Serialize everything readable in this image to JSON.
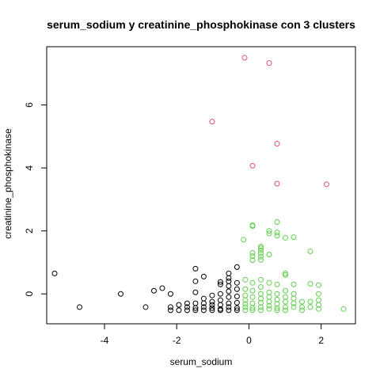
{
  "chart_data": {
    "type": "scatter",
    "title": "serum_sodium  y  creatinine_phosphokinase con  3  clusters",
    "xlabel": "serum_sodium",
    "ylabel": "creatinine_phosphokinase",
    "xlim": [
      -5.6,
      2.95
    ],
    "ylim": [
      -0.95,
      7.85
    ],
    "xticks": [
      -4,
      -2,
      0,
      2
    ],
    "yticks": [
      0,
      2,
      4,
      6
    ],
    "xtick_labels": [
      "-4",
      "-2",
      "0",
      "2"
    ],
    "ytick_labels": [
      "0",
      "2",
      "4",
      "6"
    ],
    "grid": false,
    "legend": "none",
    "series": [
      {
        "color": "#000000",
        "points": [
          [
            -5.38,
            0.65
          ],
          [
            -4.69,
            -0.42
          ],
          [
            -3.55,
            0.0
          ],
          [
            -2.86,
            -0.42
          ],
          [
            -2.63,
            0.1
          ],
          [
            -2.4,
            0.18
          ],
          [
            -2.17,
            0.0
          ],
          [
            -2.17,
            -0.42
          ],
          [
            -2.17,
            -0.52
          ],
          [
            -1.94,
            -0.35
          ],
          [
            -1.94,
            -0.52
          ],
          [
            -1.71,
            -0.3
          ],
          [
            -1.71,
            -0.42
          ],
          [
            -1.71,
            -0.52
          ],
          [
            -1.48,
            -0.3
          ],
          [
            -1.48,
            -0.45
          ],
          [
            -1.48,
            -0.52
          ],
          [
            -1.48,
            0.8
          ],
          [
            -1.48,
            0.4
          ],
          [
            -1.48,
            0.05
          ],
          [
            -1.25,
            0.55
          ],
          [
            -1.25,
            -0.15
          ],
          [
            -1.25,
            -0.3
          ],
          [
            -1.25,
            -0.42
          ],
          [
            -1.25,
            -0.52
          ],
          [
            -1.02,
            -0.05
          ],
          [
            -1.02,
            -0.25
          ],
          [
            -1.02,
            -0.35
          ],
          [
            -1.02,
            -0.45
          ],
          [
            -1.02,
            -0.52
          ],
          [
            -0.79,
            0.38
          ],
          [
            -0.79,
            0.3
          ],
          [
            -0.79,
            0.0
          ],
          [
            -0.79,
            -0.2
          ],
          [
            -0.79,
            -0.35
          ],
          [
            -0.79,
            -0.48
          ],
          [
            -0.79,
            -0.52
          ],
          [
            -0.56,
            0.65
          ],
          [
            -0.56,
            0.5
          ],
          [
            -0.56,
            0.4
          ],
          [
            -0.56,
            0.25
          ],
          [
            -0.56,
            0.08
          ],
          [
            -0.56,
            -0.1
          ],
          [
            -0.56,
            -0.3
          ],
          [
            -0.56,
            -0.42
          ],
          [
            -0.56,
            -0.52
          ],
          [
            -0.33,
            0.85
          ],
          [
            -0.33,
            0.35
          ],
          [
            -0.33,
            0.15
          ],
          [
            -0.33,
            -0.08
          ],
          [
            -0.33,
            -0.28
          ],
          [
            -0.33,
            -0.45
          ],
          [
            -0.33,
            -0.52
          ]
        ]
      },
      {
        "color": "#DF536B",
        "points": [
          [
            -0.12,
            7.5
          ],
          [
            0.56,
            7.33
          ],
          [
            -1.02,
            5.47
          ],
          [
            0.78,
            4.77
          ],
          [
            0.1,
            4.07
          ],
          [
            0.78,
            3.5
          ],
          [
            2.15,
            3.48
          ]
        ]
      },
      {
        "color": "#61D04F",
        "points": [
          [
            -0.15,
            1.72
          ],
          [
            -0.1,
            0.45
          ],
          [
            -0.1,
            0.15
          ],
          [
            -0.1,
            -0.05
          ],
          [
            -0.1,
            -0.2
          ],
          [
            -0.1,
            -0.32
          ],
          [
            -0.1,
            -0.42
          ],
          [
            -0.1,
            -0.52
          ],
          [
            0.1,
            2.15
          ],
          [
            0.1,
            2.18
          ],
          [
            0.1,
            1.3
          ],
          [
            0.1,
            1.2
          ],
          [
            0.1,
            1.07
          ],
          [
            0.1,
            0.35
          ],
          [
            0.1,
            0.1
          ],
          [
            0.1,
            -0.1
          ],
          [
            0.1,
            -0.3
          ],
          [
            0.1,
            -0.45
          ],
          [
            0.1,
            -0.52
          ],
          [
            0.33,
            1.5
          ],
          [
            0.33,
            1.45
          ],
          [
            0.33,
            1.38
          ],
          [
            0.33,
            1.28
          ],
          [
            0.33,
            1.18
          ],
          [
            0.33,
            1.08
          ],
          [
            0.33,
            0.45
          ],
          [
            0.33,
            0.22
          ],
          [
            0.33,
            0.0
          ],
          [
            0.33,
            -0.15
          ],
          [
            0.33,
            -0.28
          ],
          [
            0.33,
            -0.42
          ],
          [
            0.33,
            -0.52
          ],
          [
            0.56,
            2.0
          ],
          [
            0.56,
            1.92
          ],
          [
            0.56,
            1.25
          ],
          [
            0.56,
            0.35
          ],
          [
            0.56,
            0.05
          ],
          [
            0.56,
            -0.1
          ],
          [
            0.56,
            -0.25
          ],
          [
            0.56,
            -0.38
          ],
          [
            0.56,
            -0.48
          ],
          [
            0.78,
            2.28
          ],
          [
            0.78,
            1.95
          ],
          [
            0.78,
            1.85
          ],
          [
            0.78,
            0.3
          ],
          [
            0.78,
            0.0
          ],
          [
            0.78,
            -0.18
          ],
          [
            0.78,
            -0.32
          ],
          [
            0.78,
            -0.45
          ],
          [
            0.78,
            -0.52
          ],
          [
            1.01,
            1.78
          ],
          [
            1.01,
            0.65
          ],
          [
            1.01,
            0.6
          ],
          [
            1.01,
            0.1
          ],
          [
            1.01,
            -0.1
          ],
          [
            1.01,
            -0.25
          ],
          [
            1.01,
            -0.42
          ],
          [
            1.01,
            -0.52
          ],
          [
            1.24,
            1.8
          ],
          [
            1.24,
            0.3
          ],
          [
            1.24,
            0.0
          ],
          [
            1.24,
            -0.15
          ],
          [
            1.24,
            -0.3
          ],
          [
            1.24,
            -0.42
          ],
          [
            1.47,
            -0.25
          ],
          [
            1.47,
            -0.42
          ],
          [
            1.47,
            -0.52
          ],
          [
            1.7,
            1.35
          ],
          [
            1.7,
            0.32
          ],
          [
            1.7,
            -0.25
          ],
          [
            1.7,
            -0.42
          ],
          [
            1.93,
            0.28
          ],
          [
            1.93,
            0.0
          ],
          [
            1.93,
            -0.2
          ],
          [
            1.93,
            -0.35
          ],
          [
            1.93,
            -0.48
          ],
          [
            2.62,
            -0.48
          ]
        ]
      }
    ]
  }
}
